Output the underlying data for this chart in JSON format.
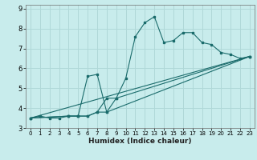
{
  "xlabel": "Humidex (Indice chaleur)",
  "bg_color": "#c8ecec",
  "grid_color": "#b0d8d8",
  "line_color": "#1a6b6b",
  "xlim": [
    -0.5,
    23.5
  ],
  "ylim": [
    3,
    9.2
  ],
  "xticks": [
    0,
    1,
    2,
    3,
    4,
    5,
    6,
    7,
    8,
    9,
    10,
    11,
    12,
    13,
    14,
    15,
    16,
    17,
    18,
    19,
    20,
    21,
    22,
    23
  ],
  "yticks": [
    3,
    4,
    5,
    6,
    7,
    8,
    9
  ],
  "line1_x": [
    0,
    1,
    2,
    3,
    4,
    5,
    6,
    7,
    8,
    9,
    10,
    11,
    12,
    13,
    14,
    15,
    16,
    17,
    18,
    19,
    20,
    21,
    22,
    23
  ],
  "line1_y": [
    3.5,
    3.6,
    3.5,
    3.5,
    3.6,
    3.6,
    3.6,
    3.8,
    3.8,
    4.5,
    5.5,
    7.6,
    8.3,
    8.6,
    7.3,
    7.4,
    7.8,
    7.8,
    7.3,
    7.2,
    6.8,
    6.7,
    6.5,
    6.6
  ],
  "line2_x": [
    0,
    4,
    5,
    6,
    7,
    8,
    23
  ],
  "line2_y": [
    3.5,
    3.6,
    3.6,
    5.6,
    5.7,
    3.8,
    6.6
  ],
  "line3_x": [
    0,
    4,
    5,
    6,
    7,
    8,
    9,
    23
  ],
  "line3_y": [
    3.5,
    3.6,
    3.6,
    3.6,
    3.8,
    4.5,
    4.5,
    6.6
  ],
  "line4_x": [
    0,
    23
  ],
  "line4_y": [
    3.5,
    6.6
  ]
}
